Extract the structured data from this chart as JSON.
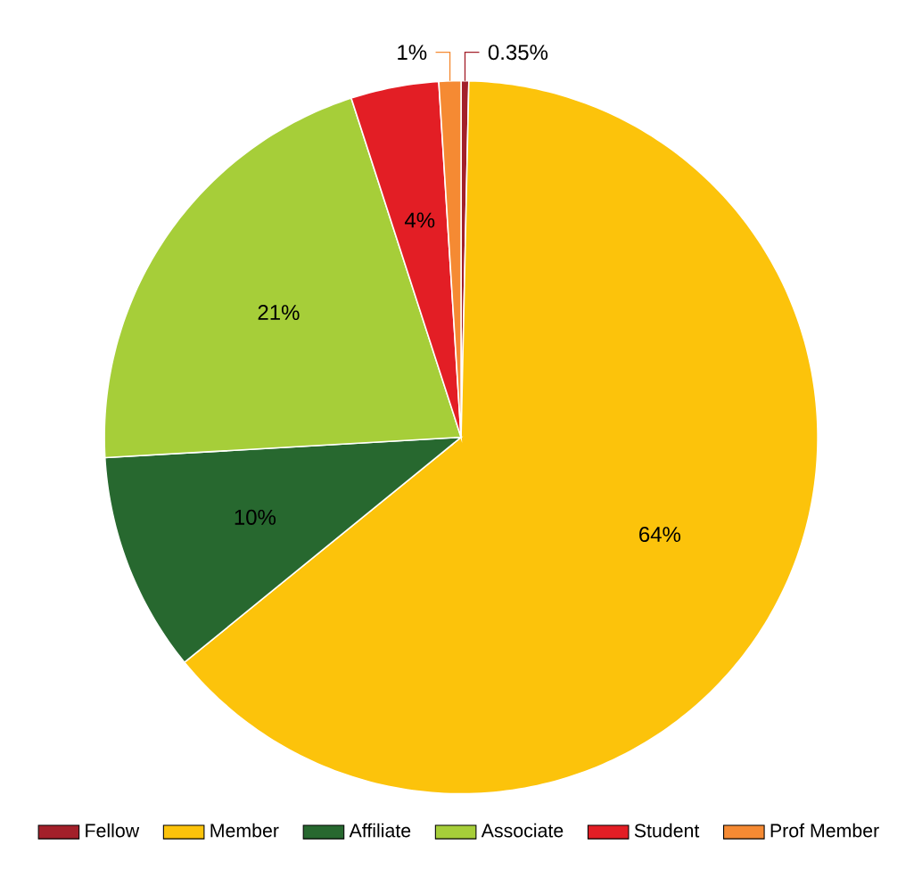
{
  "chart_data": {
    "type": "pie",
    "categories": [
      "Fellow",
      "Member",
      "Affiliate",
      "Associate",
      "Student",
      "Prof Member"
    ],
    "values": [
      0.35,
      64,
      10,
      21,
      4,
      1
    ],
    "colors": [
      "#a3202a",
      "#fcc30b",
      "#27682f",
      "#a6ce39",
      "#e31e25",
      "#f58a33"
    ],
    "value_labels": [
      "0.35%",
      "64%",
      "10%",
      "21%",
      "4%",
      "1%"
    ],
    "legend": "bottom"
  }
}
